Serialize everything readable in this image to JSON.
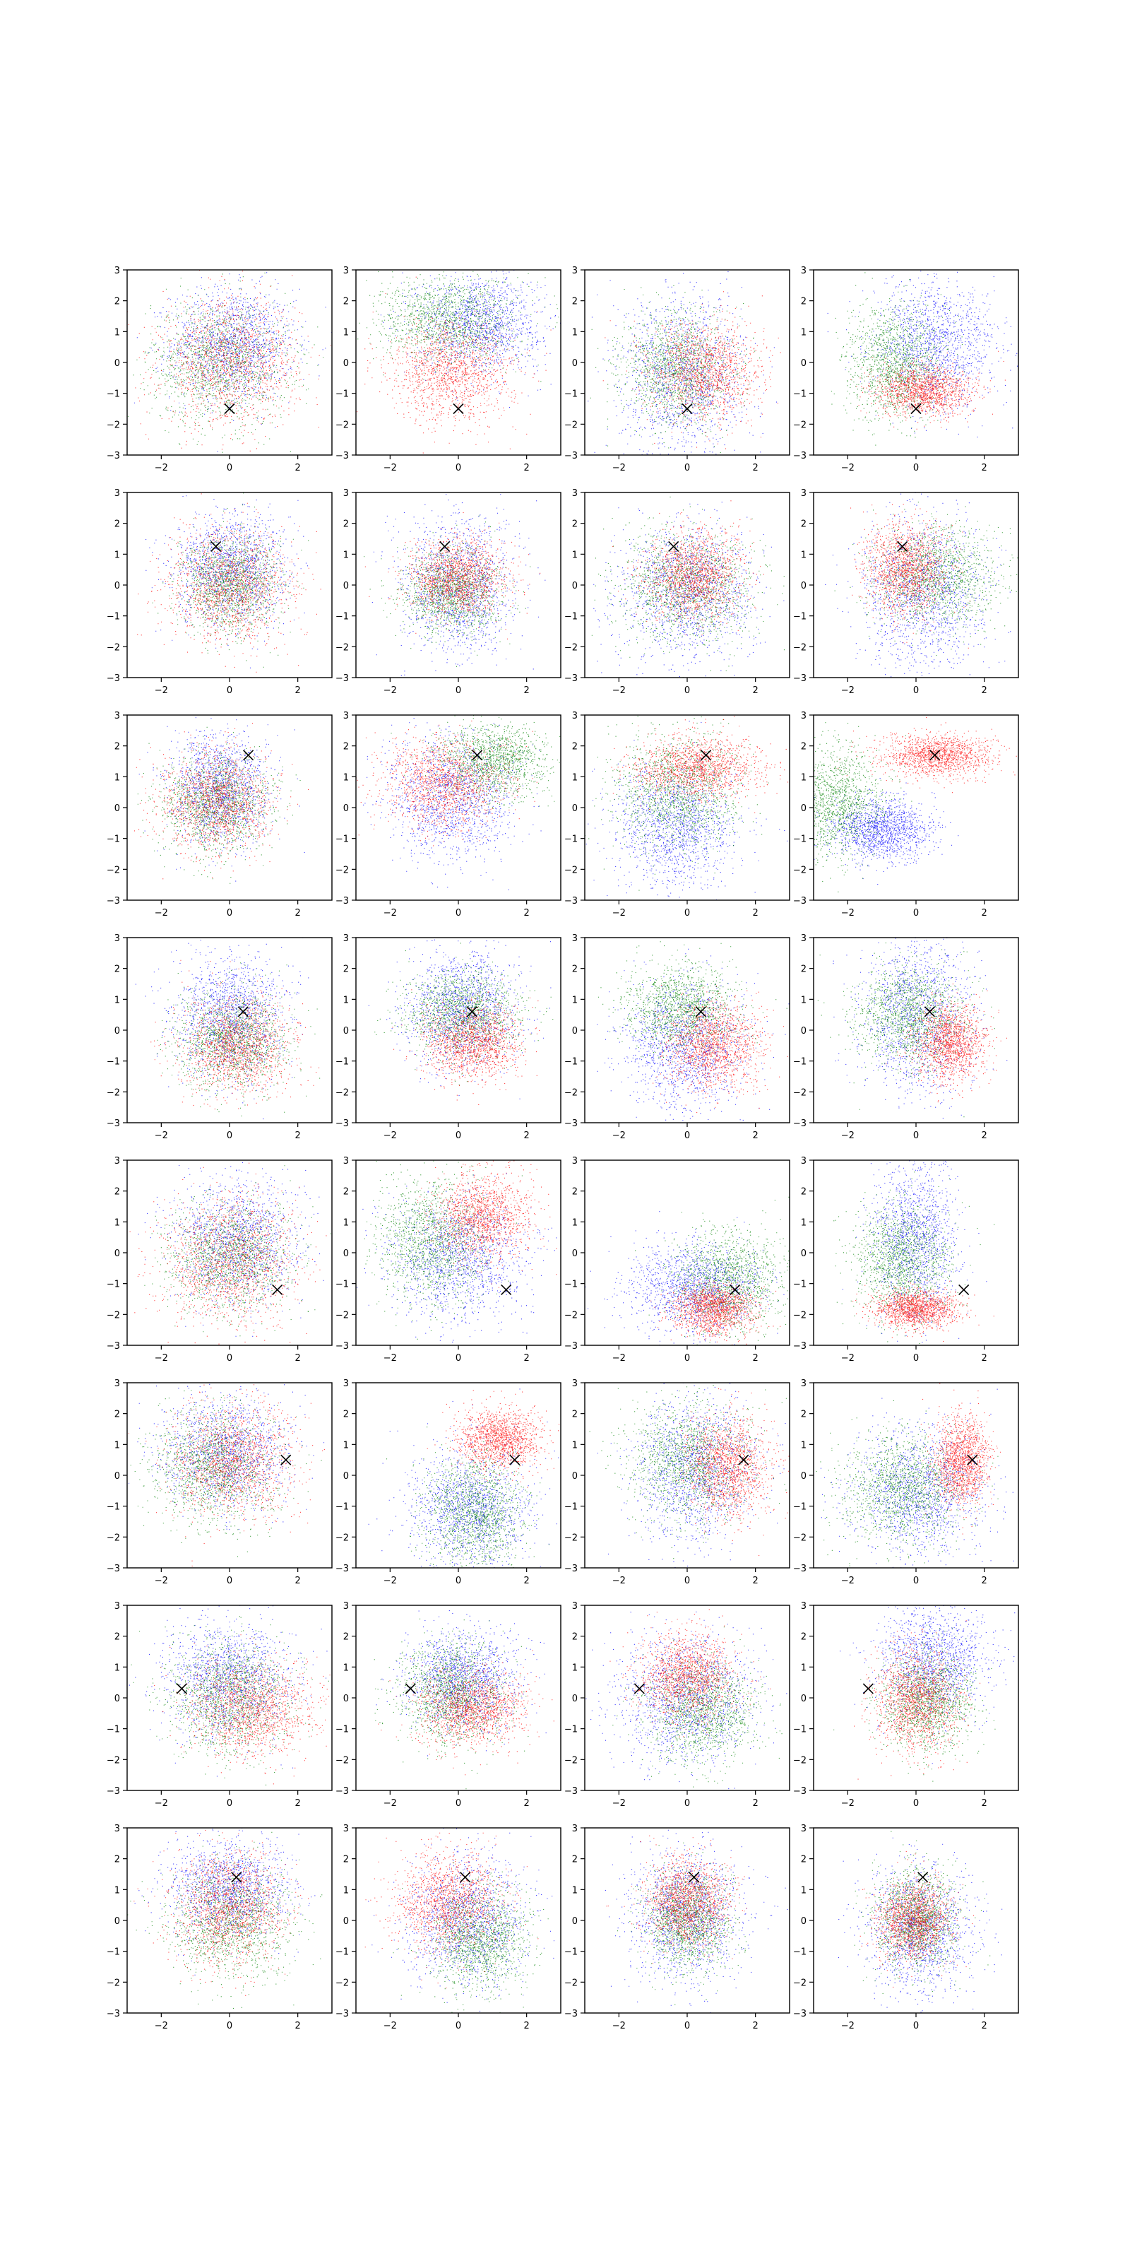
{
  "colors": {
    "red": "#ff0000",
    "green": "#008000",
    "blue": "#0000ff",
    "marker": "#000000",
    "frame": "#000000"
  },
  "chart_data": {
    "type": "scatter",
    "grid": false,
    "legend": "none",
    "rows": 8,
    "cols": 4,
    "xlim": [
      -3,
      3
    ],
    "ylim": [
      -3,
      3
    ],
    "xticks": [
      -2,
      0,
      2
    ],
    "yticks": [
      -3,
      -2,
      -1,
      0,
      1,
      2,
      3
    ],
    "xtick_labels": [
      "−2",
      "0",
      "2"
    ],
    "ytick_labels": [
      "−3",
      "−2",
      "−1",
      "0",
      "1",
      "2",
      "3"
    ],
    "series_colors": [
      "red",
      "green",
      "blue"
    ],
    "note": "",
    "marker_points": [
      [
        0.0,
        -1.5
      ],
      [
        -0.4,
        1.25
      ],
      [
        0.55,
        1.7
      ],
      [
        0.4,
        0.6
      ],
      [
        1.4,
        -1.2
      ],
      [
        1.65,
        0.5
      ],
      [
        -1.4,
        0.3
      ],
      [
        0.2,
        1.4
      ]
    ],
    "clusters": [
      [
        {
          "color": "red",
          "cx": 0.0,
          "cy": 0.0,
          "sx": 1.0,
          "sy": 1.0
        },
        {
          "color": "green",
          "cx": -0.3,
          "cy": 0.0,
          "sx": 1.0,
          "sy": 1.0
        },
        {
          "color": "blue",
          "cx": 0.1,
          "cy": 0.6,
          "sx": 0.9,
          "sy": 0.9
        }
      ],
      [
        {
          "color": "red",
          "cx": -0.2,
          "cy": -0.3,
          "sx": 0.9,
          "sy": 0.8
        },
        {
          "color": "green",
          "cx": -0.3,
          "cy": 1.4,
          "sx": 1.0,
          "sy": 0.7
        },
        {
          "color": "blue",
          "cx": 0.6,
          "cy": 1.3,
          "sx": 0.9,
          "sy": 0.8
        }
      ],
      [
        {
          "color": "red",
          "cx": 0.5,
          "cy": -0.3,
          "sx": 0.8,
          "sy": 0.8
        },
        {
          "color": "green",
          "cx": -0.3,
          "cy": -0.2,
          "sx": 0.8,
          "sy": 0.9
        },
        {
          "color": "blue",
          "cx": -0.1,
          "cy": -0.4,
          "sx": 0.9,
          "sy": 1.3
        }
      ],
      [
        {
          "color": "red",
          "cx": 0.2,
          "cy": -0.9,
          "sx": 0.7,
          "sy": 0.4
        },
        {
          "color": "green",
          "cx": -0.6,
          "cy": 0.0,
          "sx": 0.7,
          "sy": 0.9
        },
        {
          "color": "blue",
          "cx": 0.6,
          "cy": 0.6,
          "sx": 0.9,
          "sy": 1.0
        }
      ],
      [
        {
          "color": "red",
          "cx": 0.0,
          "cy": 0.0,
          "sx": 0.9,
          "sy": 0.9
        },
        {
          "color": "green",
          "cx": 0.0,
          "cy": 0.0,
          "sx": 0.7,
          "sy": 0.8
        },
        {
          "color": "blue",
          "cx": 0.0,
          "cy": 0.5,
          "sx": 0.8,
          "sy": 0.9
        }
      ],
      [
        {
          "color": "red",
          "cx": 0.0,
          "cy": 0.2,
          "sx": 0.7,
          "sy": 0.6
        },
        {
          "color": "green",
          "cx": -0.2,
          "cy": -0.2,
          "sx": 0.7,
          "sy": 0.7
        },
        {
          "color": "blue",
          "cx": 0.0,
          "cy": 0.0,
          "sx": 0.8,
          "sy": 1.1
        }
      ],
      [
        {
          "color": "red",
          "cx": 0.2,
          "cy": 0.3,
          "sx": 0.7,
          "sy": 0.7
        },
        {
          "color": "green",
          "cx": 0.0,
          "cy": 0.0,
          "sx": 1.0,
          "sy": 0.9
        },
        {
          "color": "blue",
          "cx": 0.0,
          "cy": -0.2,
          "sx": 1.0,
          "sy": 1.1
        }
      ],
      [
        {
          "color": "red",
          "cx": -0.3,
          "cy": 0.5,
          "sx": 0.6,
          "sy": 0.7
        },
        {
          "color": "green",
          "cx": 0.6,
          "cy": 0.3,
          "sx": 0.9,
          "sy": 0.8
        },
        {
          "color": "blue",
          "cx": 0.2,
          "cy": -0.2,
          "sx": 0.9,
          "sy": 1.2
        }
      ],
      [
        {
          "color": "red",
          "cx": -0.4,
          "cy": 0.2,
          "sx": 0.8,
          "sy": 0.8
        },
        {
          "color": "green",
          "cx": -0.4,
          "cy": 0.1,
          "sx": 0.8,
          "sy": 0.8
        },
        {
          "color": "blue",
          "cx": -0.3,
          "cy": 0.6,
          "sx": 0.7,
          "sy": 0.9
        }
      ],
      [
        {
          "color": "red",
          "cx": -0.4,
          "cy": 0.8,
          "sx": 0.9,
          "sy": 0.7
        },
        {
          "color": "green",
          "cx": 1.0,
          "cy": 1.5,
          "sx": 0.8,
          "sy": 0.6
        },
        {
          "color": "blue",
          "cx": -0.2,
          "cy": 0.3,
          "sx": 0.9,
          "sy": 1.0
        }
      ],
      [
        {
          "color": "red",
          "cx": 0.3,
          "cy": 1.3,
          "sx": 0.9,
          "sy": 0.5
        },
        {
          "color": "green",
          "cx": -0.3,
          "cy": 0.5,
          "sx": 0.9,
          "sy": 0.9
        },
        {
          "color": "blue",
          "cx": -0.4,
          "cy": -0.6,
          "sx": 0.9,
          "sy": 1.0
        }
      ],
      [
        {
          "color": "red",
          "cx": 0.6,
          "cy": 1.7,
          "sx": 0.8,
          "sy": 0.35
        },
        {
          "color": "green",
          "cx": -2.4,
          "cy": 0.2,
          "sx": 0.7,
          "sy": 0.9
        },
        {
          "color": "blue",
          "cx": -1.0,
          "cy": -0.7,
          "sx": 0.7,
          "sy": 0.5
        }
      ],
      [
        {
          "color": "red",
          "cx": 0.2,
          "cy": -0.5,
          "sx": 0.8,
          "sy": 0.8
        },
        {
          "color": "green",
          "cx": 0.1,
          "cy": -0.3,
          "sx": 0.8,
          "sy": 0.8
        },
        {
          "color": "blue",
          "cx": 0.0,
          "cy": 0.5,
          "sx": 0.8,
          "sy": 1.0
        }
      ],
      [
        {
          "color": "red",
          "cx": 0.4,
          "cy": -0.4,
          "sx": 0.7,
          "sy": 0.6
        },
        {
          "color": "green",
          "cx": 0.1,
          "cy": 0.6,
          "sx": 0.8,
          "sy": 0.7
        },
        {
          "color": "blue",
          "cx": 0.1,
          "cy": 0.7,
          "sx": 0.8,
          "sy": 0.9
        }
      ],
      [
        {
          "color": "red",
          "cx": 0.8,
          "cy": -0.5,
          "sx": 0.7,
          "sy": 0.7
        },
        {
          "color": "green",
          "cx": -0.2,
          "cy": 0.7,
          "sx": 0.8,
          "sy": 0.7
        },
        {
          "color": "blue",
          "cx": -0.1,
          "cy": -0.5,
          "sx": 0.9,
          "sy": 1.0
        }
      ],
      [
        {
          "color": "red",
          "cx": 1.0,
          "cy": -0.4,
          "sx": 0.5,
          "sy": 0.6
        },
        {
          "color": "green",
          "cx": -0.2,
          "cy": 0.5,
          "sx": 0.8,
          "sy": 0.8
        },
        {
          "color": "blue",
          "cx": 0.0,
          "cy": 0.5,
          "sx": 0.8,
          "sy": 1.3
        }
      ],
      [
        {
          "color": "red",
          "cx": 0.0,
          "cy": -0.2,
          "sx": 1.0,
          "sy": 1.0
        },
        {
          "color": "green",
          "cx": 0.0,
          "cy": -0.1,
          "sx": 0.9,
          "sy": 0.9
        },
        {
          "color": "blue",
          "cx": 0.2,
          "cy": 0.4,
          "sx": 0.9,
          "sy": 1.0
        }
      ],
      [
        {
          "color": "red",
          "cx": 0.7,
          "cy": 1.2,
          "sx": 0.7,
          "sy": 0.7
        },
        {
          "color": "green",
          "cx": -0.8,
          "cy": 0.4,
          "sx": 0.8,
          "sy": 1.0
        },
        {
          "color": "blue",
          "cx": 0.0,
          "cy": -0.2,
          "sx": 1.0,
          "sy": 1.0
        }
      ],
      [
        {
          "color": "red",
          "cx": 0.8,
          "cy": -1.8,
          "sx": 0.6,
          "sy": 0.4
        },
        {
          "color": "green",
          "cx": 1.2,
          "cy": -0.9,
          "sx": 0.8,
          "sy": 0.8
        },
        {
          "color": "blue",
          "cx": 0.2,
          "cy": -1.1,
          "sx": 1.0,
          "sy": 0.7
        }
      ],
      [
        {
          "color": "red",
          "cx": 0.0,
          "cy": -1.8,
          "sx": 0.6,
          "sy": 0.3
        },
        {
          "color": "green",
          "cx": -0.4,
          "cy": -0.2,
          "sx": 0.7,
          "sy": 0.9
        },
        {
          "color": "blue",
          "cx": 0.0,
          "cy": 0.5,
          "sx": 0.6,
          "sy": 1.3
        }
      ],
      [
        {
          "color": "red",
          "cx": 0.1,
          "cy": 0.5,
          "sx": 0.9,
          "sy": 0.9
        },
        {
          "color": "green",
          "cx": -0.5,
          "cy": 0.3,
          "sx": 0.9,
          "sy": 0.9
        },
        {
          "color": "blue",
          "cx": -0.1,
          "cy": 0.8,
          "sx": 0.9,
          "sy": 0.9
        }
      ],
      [
        {
          "color": "red",
          "cx": 1.2,
          "cy": 1.2,
          "sx": 0.6,
          "sy": 0.5
        },
        {
          "color": "green",
          "cx": 0.5,
          "cy": -1.2,
          "sx": 0.7,
          "sy": 0.9
        },
        {
          "color": "blue",
          "cx": 0.4,
          "cy": -1.1,
          "sx": 0.9,
          "sy": 1.0
        }
      ],
      [
        {
          "color": "red",
          "cx": 1.2,
          "cy": 0.3,
          "sx": 0.6,
          "sy": 0.8
        },
        {
          "color": "green",
          "cx": 0.0,
          "cy": 0.5,
          "sx": 0.9,
          "sy": 0.9
        },
        {
          "color": "blue",
          "cx": 0.2,
          "cy": 0.2,
          "sx": 0.9,
          "sy": 1.2
        }
      ],
      [
        {
          "color": "red",
          "cx": 1.3,
          "cy": 0.5,
          "sx": 0.4,
          "sy": 0.7
        },
        {
          "color": "green",
          "cx": -0.4,
          "cy": -0.4,
          "sx": 0.9,
          "sy": 0.9
        },
        {
          "color": "blue",
          "cx": 0.1,
          "cy": -0.5,
          "sx": 1.0,
          "sy": 1.0
        }
      ],
      [
        {
          "color": "red",
          "cx": 0.6,
          "cy": -0.3,
          "sx": 0.9,
          "sy": 0.8
        },
        {
          "color": "green",
          "cx": 0.0,
          "cy": 0.0,
          "sx": 0.9,
          "sy": 0.9
        },
        {
          "color": "blue",
          "cx": 0.0,
          "cy": 0.6,
          "sx": 0.9,
          "sy": 0.9
        }
      ],
      [
        {
          "color": "red",
          "cx": 0.4,
          "cy": -0.3,
          "sx": 0.8,
          "sy": 0.6
        },
        {
          "color": "green",
          "cx": -0.2,
          "cy": 0.2,
          "sx": 0.8,
          "sy": 0.8
        },
        {
          "color": "blue",
          "cx": 0.1,
          "cy": 0.6,
          "sx": 0.8,
          "sy": 0.8
        }
      ],
      [
        {
          "color": "red",
          "cx": 0.0,
          "cy": 0.7,
          "sx": 0.7,
          "sy": 0.7
        },
        {
          "color": "green",
          "cx": 0.4,
          "cy": -0.4,
          "sx": 0.8,
          "sy": 0.8
        },
        {
          "color": "blue",
          "cx": 0.0,
          "cy": 0.0,
          "sx": 1.0,
          "sy": 1.0
        }
      ],
      [
        {
          "color": "red",
          "cx": 0.0,
          "cy": -0.1,
          "sx": 0.6,
          "sy": 0.8
        },
        {
          "color": "green",
          "cx": 0.3,
          "cy": -0.1,
          "sx": 0.7,
          "sy": 0.8
        },
        {
          "color": "blue",
          "cx": 0.5,
          "cy": 1.2,
          "sx": 0.8,
          "sy": 0.9
        }
      ],
      [
        {
          "color": "red",
          "cx": 0.0,
          "cy": 0.4,
          "sx": 0.8,
          "sy": 0.9
        },
        {
          "color": "green",
          "cx": 0.0,
          "cy": 0.0,
          "sx": 0.9,
          "sy": 0.9
        },
        {
          "color": "blue",
          "cx": 0.0,
          "cy": 1.0,
          "sx": 0.9,
          "sy": 0.8
        }
      ],
      [
        {
          "color": "red",
          "cx": -0.3,
          "cy": 0.6,
          "sx": 0.8,
          "sy": 0.8
        },
        {
          "color": "green",
          "cx": 0.6,
          "cy": -0.6,
          "sx": 0.7,
          "sy": 0.8
        },
        {
          "color": "blue",
          "cx": 0.2,
          "cy": 0.0,
          "sx": 0.9,
          "sy": 1.0
        }
      ],
      [
        {
          "color": "red",
          "cx": 0.0,
          "cy": 0.6,
          "sx": 0.6,
          "sy": 0.7
        },
        {
          "color": "green",
          "cx": 0.0,
          "cy": 0.0,
          "sx": 0.6,
          "sy": 0.8
        },
        {
          "color": "blue",
          "cx": 0.0,
          "cy": 0.2,
          "sx": 0.8,
          "sy": 1.0
        }
      ],
      [
        {
          "color": "red",
          "cx": -0.1,
          "cy": 0.0,
          "sx": 0.5,
          "sy": 0.6
        },
        {
          "color": "green",
          "cx": 0.0,
          "cy": 0.0,
          "sx": 0.6,
          "sy": 0.8
        },
        {
          "color": "blue",
          "cx": 0.1,
          "cy": -0.3,
          "sx": 0.8,
          "sy": 1.0
        }
      ]
    ],
    "points_per_series": 1400
  }
}
